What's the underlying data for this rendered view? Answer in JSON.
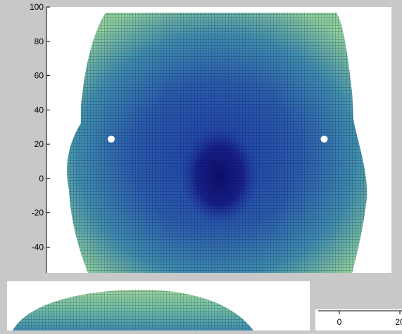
{
  "chart_data": [
    {
      "type": "heatmap",
      "title": "",
      "xlabel": "",
      "ylabel": "",
      "yticks": [
        100,
        80,
        60,
        40,
        20,
        0,
        -20,
        -40
      ],
      "ylim": [
        -55,
        100
      ],
      "grid": false,
      "colormap": [
        "#1a1a8c",
        "#1f3fa8",
        "#2f6fb8",
        "#4fa8b0",
        "#9fd7a0"
      ],
      "markers": [
        {
          "x": -28,
          "y": 23
        },
        {
          "x": 27,
          "y": 23
        }
      ],
      "mesh_color": "#000000"
    },
    {
      "type": "heatmap",
      "title": "",
      "xlabel": "",
      "ylabel": "",
      "xticks": [
        0,
        20
      ],
      "grid": false,
      "colormap": [
        "#1f3fa8",
        "#4fa8b0",
        "#9fd7a0"
      ]
    }
  ]
}
